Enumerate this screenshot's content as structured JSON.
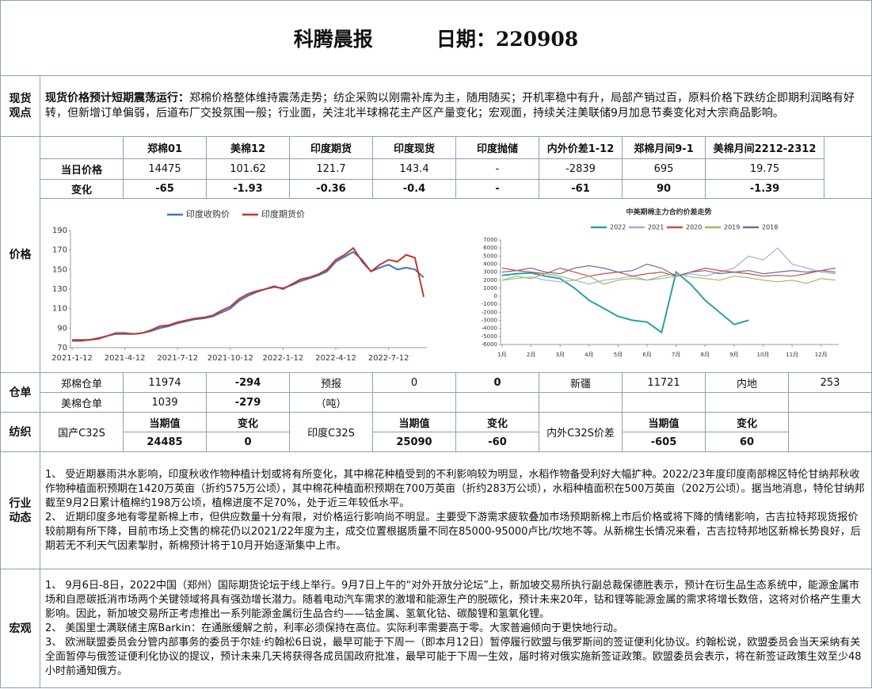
{
  "header": {
    "title": "科腾晨报",
    "date": "日期：220908"
  },
  "spot": {
    "label": "现货观点",
    "lead": "现货价格预计短期震荡运行：",
    "text": "郑棉价格整体维持震荡走势；纺企采购以刚需补库为主，随用随买；开机率稳中有升，局部产销过百，原料价格下跌纺企即期利润略有好转，但新增订单偏弱，后道布厂交投氛围一般；行业面，关注北半球棉花主产区产量变化；宏观面，持续关注美联储9月加息节奏变化对大宗商品影响。"
  },
  "price": {
    "label": "价格",
    "columns": [
      "郑棉01",
      "美棉12",
      "印度期货",
      "印度现货",
      "印度抛储",
      "内外价差1-12",
      "郑棉月间9-1",
      "美棉月间2212-2312"
    ],
    "rows": [
      {
        "label": "当日价格",
        "values": [
          14475,
          101.62,
          121.7,
          143.4,
          "-",
          -2839,
          695,
          19.75
        ]
      },
      {
        "label": "变化",
        "values": [
          -65,
          -1.93,
          -0.36,
          -0.4,
          "-",
          -61,
          90,
          -1.39
        ]
      }
    ]
  },
  "chart_data": [
    {
      "type": "line",
      "categories": [
        "2021-1-12",
        null,
        null,
        null,
        null,
        null,
        "2021-4-12",
        null,
        null,
        null,
        null,
        null,
        "2021-7-12",
        null,
        null,
        null,
        null,
        null,
        "2021-10-12",
        null,
        null,
        null,
        null,
        null,
        "2022-1-12",
        null,
        null,
        null,
        null,
        null,
        "2022-4-12",
        null,
        null,
        null,
        null,
        null,
        "2022-7-12",
        null,
        null,
        null,
        null
      ],
      "series": [
        {
          "name": "印度收购价",
          "color": "#4472c4",
          "values": [
            78,
            78,
            78,
            80,
            82,
            84,
            84,
            84,
            85,
            87,
            90,
            92,
            95,
            97,
            99,
            100,
            102,
            106,
            110,
            118,
            123,
            127,
            130,
            132,
            131,
            134,
            138,
            141,
            144,
            148,
            158,
            163,
            168,
            160,
            148,
            152,
            155,
            150,
            152,
            150,
            142
          ]
        },
        {
          "name": "印度期货价",
          "color": "#c0392b",
          "values": [
            77,
            77,
            78,
            79,
            82,
            85,
            85,
            84,
            85,
            88,
            92,
            93,
            96,
            98,
            100,
            101,
            103,
            108,
            112,
            120,
            125,
            128,
            130,
            133,
            130,
            135,
            140,
            142,
            145,
            150,
            160,
            165,
            172,
            158,
            148,
            155,
            160,
            158,
            165,
            162,
            122
          ]
        }
      ],
      "ylim": [
        70,
        190
      ],
      "yticks": [
        70,
        90,
        110,
        130,
        150,
        170,
        190
      ],
      "grid": false,
      "legend": "top"
    },
    {
      "type": "line",
      "title": "中美期棉主力合约价差走势",
      "categories": [
        "1月",
        null,
        "2月",
        null,
        "3月",
        null,
        "4月",
        null,
        "5月",
        null,
        "6月",
        null,
        "7月",
        null,
        "8月",
        null,
        "9月",
        null,
        "10月",
        null,
        "11月",
        null,
        "12月",
        null
      ],
      "series": [
        {
          "name": "2022",
          "color": "#2aa0a8",
          "values": [
            2600,
            2800,
            2900,
            2500,
            2200,
            1000,
            -500,
            -1500,
            -2500,
            -3000,
            -3200,
            -4500,
            3000,
            1500,
            -500,
            -2000,
            -3500,
            -3000,
            null,
            null,
            null,
            null,
            null,
            null
          ]
        },
        {
          "name": "2021",
          "color": "#9bb0d0",
          "values": [
            2000,
            2200,
            2400,
            2000,
            1800,
            2000,
            1500,
            2000,
            2200,
            2500,
            2000,
            2200,
            2500,
            2800,
            2500,
            3000,
            3500,
            5000,
            4500,
            6000,
            4000,
            3500,
            3000,
            2800
          ]
        },
        {
          "name": "2020",
          "color": "#c0504d",
          "values": [
            3500,
            3200,
            3000,
            2800,
            3500,
            3000,
            2500,
            2800,
            3000,
            2500,
            2800,
            3000,
            2500,
            3000,
            3500,
            3200,
            3000,
            2800,
            2500,
            2600,
            2500,
            2800,
            3200,
            3000
          ]
        },
        {
          "name": "2019",
          "color": "#9bbb59",
          "values": [
            2000,
            2500,
            2200,
            2800,
            2500,
            2000,
            2500,
            1500,
            2000,
            2200,
            2000,
            2500,
            2800,
            2400,
            2200,
            2000,
            2500,
            2300,
            2000,
            1800,
            2000,
            1600,
            2200,
            2000
          ]
        },
        {
          "name": "2018",
          "color": "#8064a2",
          "values": [
            3000,
            3200,
            3500,
            3000,
            2800,
            3500,
            3800,
            3500,
            3000,
            3200,
            4000,
            3500,
            2500,
            3000,
            3200,
            2800,
            3000,
            3200,
            2800,
            3000,
            3200,
            3000,
            3200,
            3500
          ]
        }
      ],
      "ylim": [
        -6000,
        7000
      ],
      "yticks": [
        -6000,
        -5000,
        -4000,
        -3000,
        -2000,
        -1000,
        0,
        1000,
        2000,
        3000,
        4000,
        5000,
        6000,
        7000
      ],
      "grid": false,
      "legend": "top"
    }
  ],
  "warehouse": {
    "label": "仓单",
    "rows": [
      [
        "郑棉仓单",
        11974,
        -294,
        "预报",
        0,
        0,
        "新疆",
        11721,
        "内地",
        253
      ],
      [
        "美棉仓单",
        1039,
        -279,
        "（吨）"
      ]
    ]
  },
  "textile": {
    "label": "纺织",
    "header": [
      "国产C32S",
      "当期值",
      "变化",
      "印度C32S",
      "当期值",
      "变化",
      "内外C32S价差",
      "当期值",
      "变化"
    ],
    "values": [
      24485,
      0,
      25090,
      -60,
      -605,
      60
    ]
  },
  "industry": {
    "label": "行业动态",
    "paragraphs": [
      "1、 受近期暴雨洪水影响，印度秋收作物种植计划或将有所变化，其中棉花种植受到的不利影响较为明显，水稻作物备受利好大幅扩种。2022/23年度印度南部棉区特伦甘纳邦秋收作物种植面积预期在1420万英亩（折约575万公顷），其中棉花种植面积预期在700万英亩（折约283万公顷），水稻种植面积在500万英亩（202万公顷）。据当地消息，特伦甘纳邦截至9月2日累计植棉约198万公顷，植棉进度不足70%，处于近三年较低水平。",
      "2、 近期印度多地有零星新棉上市，但供应数量十分有限，对价格运行影响尚不明显。主要受下游需求疲软叠加市场预期新棉上市后价格或将下降的情绪影响，古吉拉特邦现货报价较前期有所下降，目前市场上交售的棉花仍以2021/22年度为主，成交位置根据质量不同在85000-95000卢比/坎地不等。从新棉生长情况来看，古吉拉特邦地区新棉长势良好，后期若无不利天气因素掣肘，新棉预计将于10月开始逐渐集中上市。"
    ]
  },
  "macro": {
    "label": "宏观",
    "paragraphs": [
      "1、 9月6日-8日，2022中国（郑州）国际期货论坛于线上举行。9月7日上午的“对外开放分论坛”上，新加坡交易所执行副总裁保德胜表示，预计在衍生品生态系统中，能源金属市场和自愿碳抵消市场两个关键领域将具有强劲增长潜力。随着电动汽车需求的激增和能源生产的脱碳化，预计未来20年，钴和锂等能源金属的需求将增长数倍，这将对价格产生重大影响。因此，新加坡交易所正考虑推出一系列能源金属衍生品合约——钴金属、氢氧化钴、碳酸锂和氢氧化锂。",
      "2、 美国里士满联储主席Barkin：在通胀缓解之前，利率必须保持在高位。实际利率需要高于零。大家普遍倾向于更快地行动。",
      "3、 欧洲联盟委员会分管内部事务的委员于尔娃·约翰松6日说，最早可能于下周一（即本月12日）暂停履行欧盟与俄罗斯间的签证便利化协议。约翰松说，欧盟委员会当天采纳有关全面暂停与俄签证便利化协议的提议，预计未来几天将获得各成员国政府批准，最早可能于下周一生效，届时将对俄实施新签证政策。欧盟委员会表示，将在新签证政策生效至少48小时前通知俄方。"
    ]
  }
}
